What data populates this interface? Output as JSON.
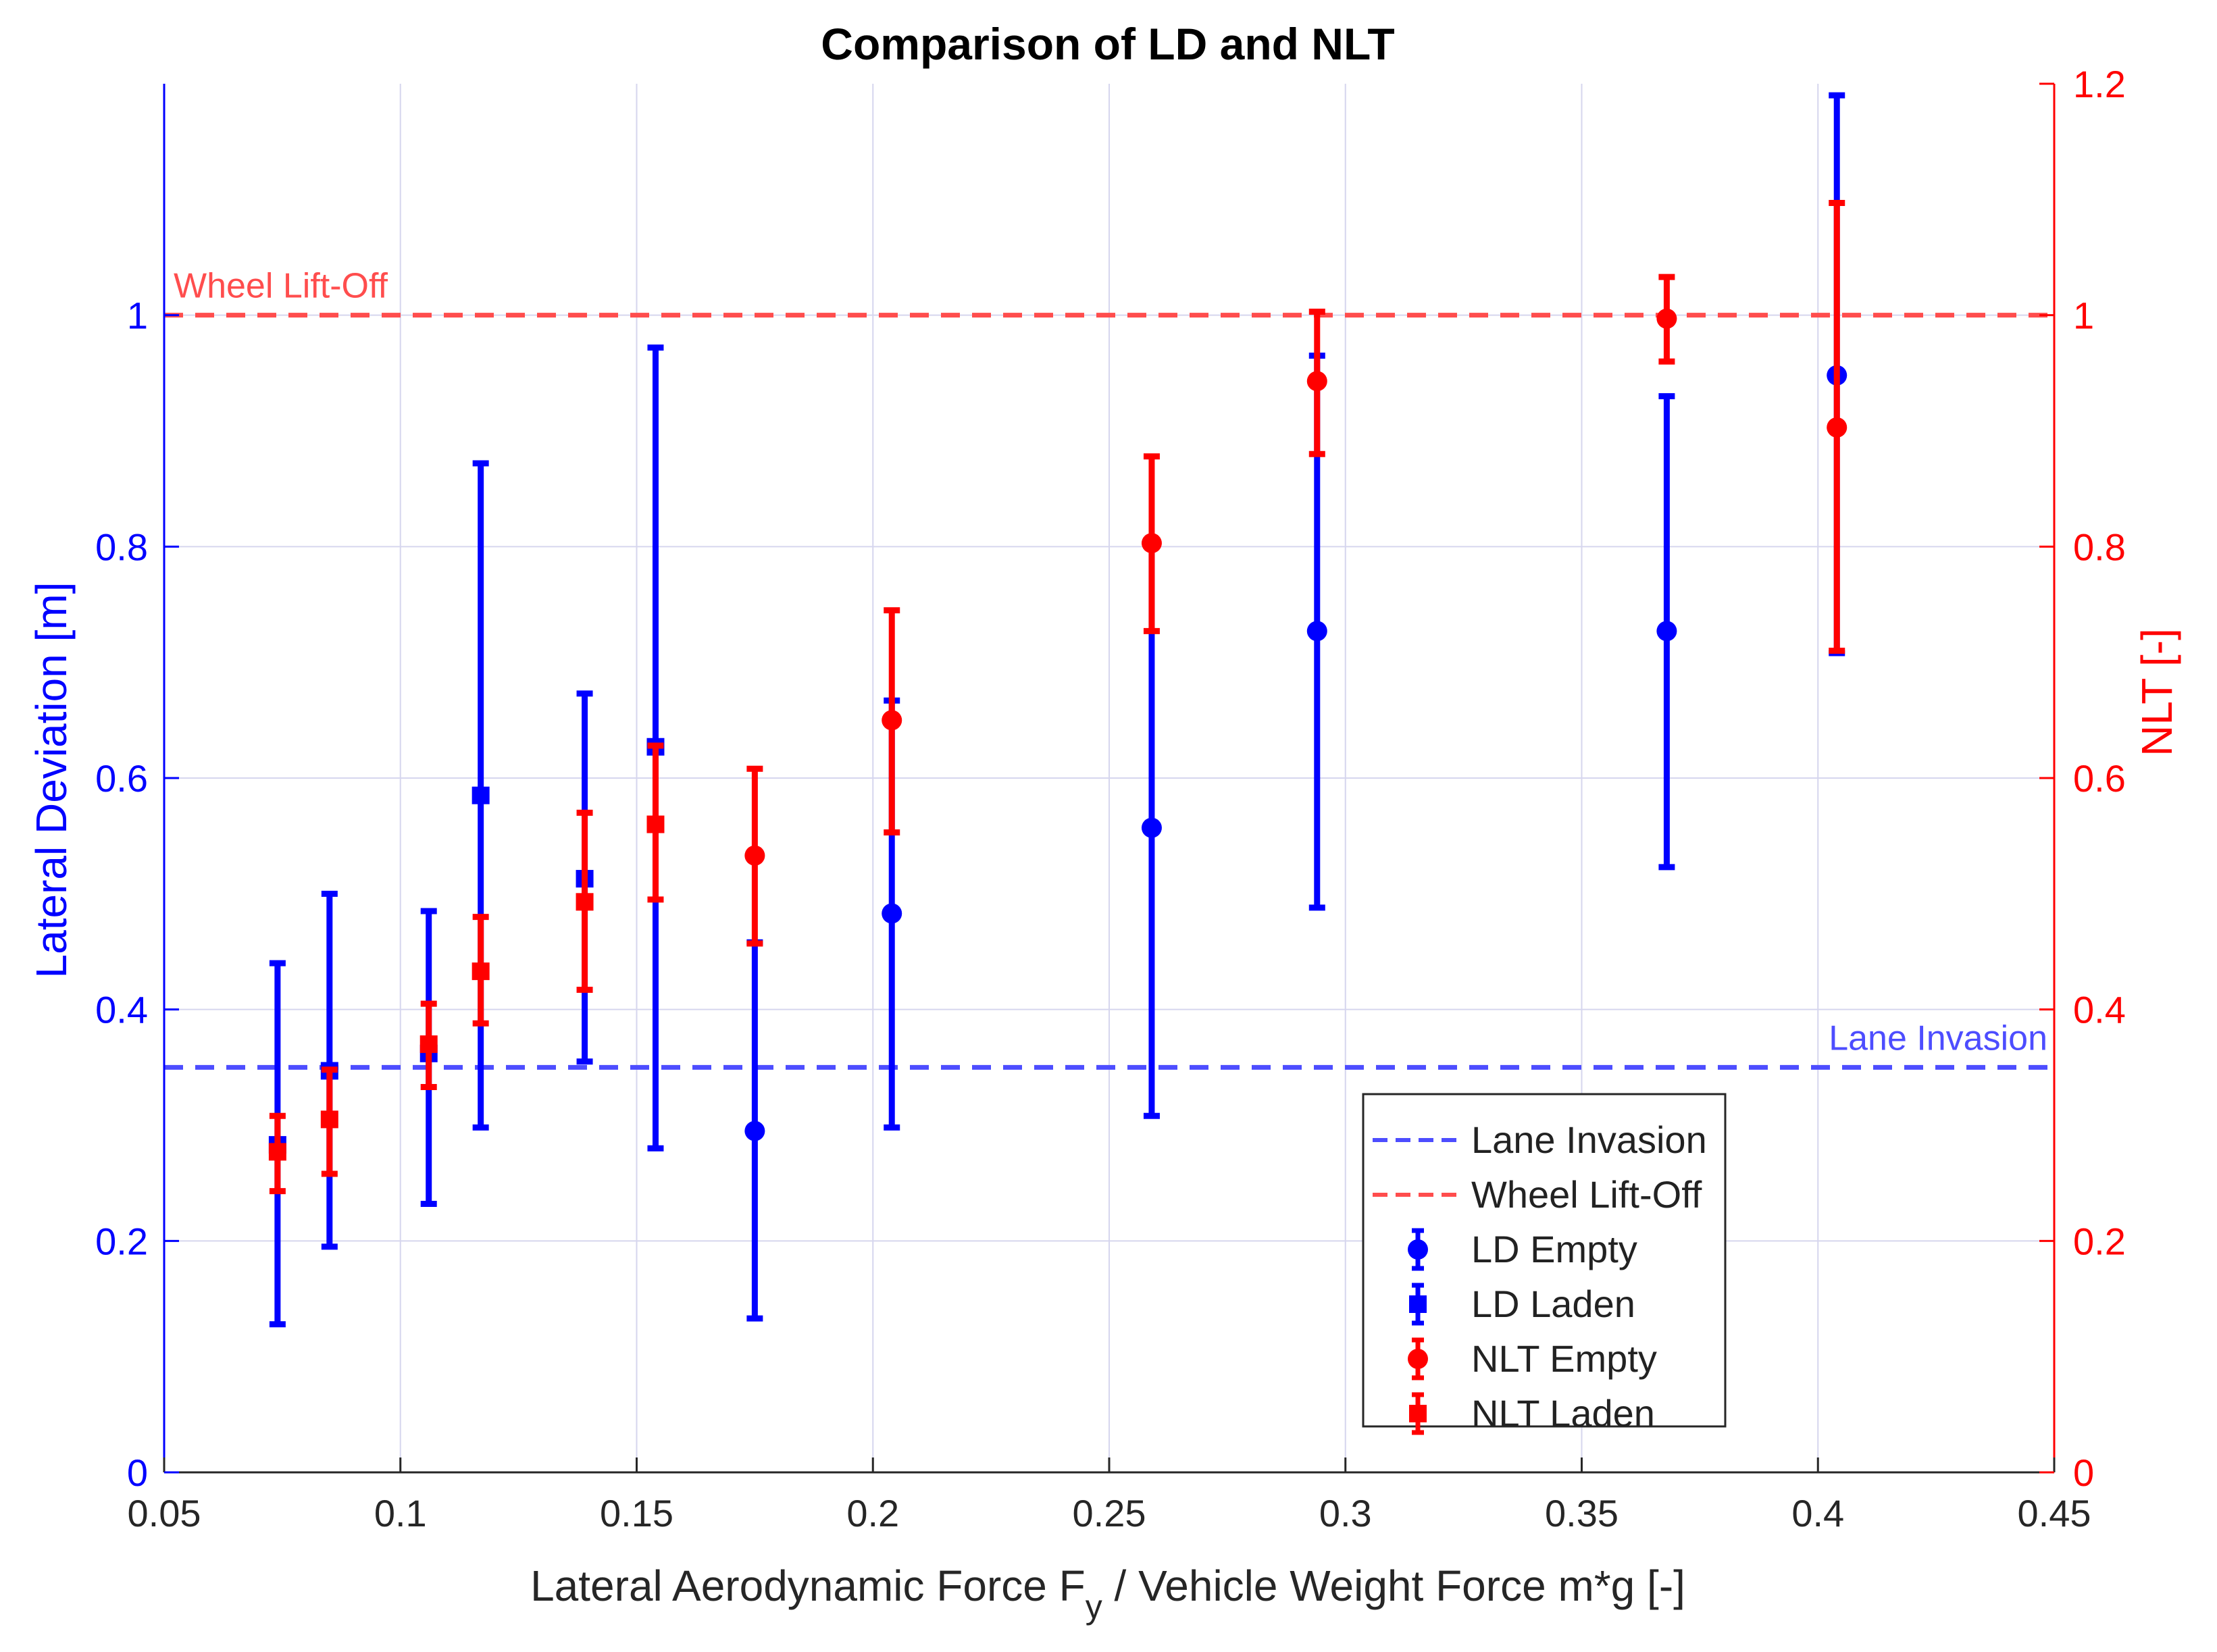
{
  "chart_data": {
    "type": "scatter",
    "title": "Comparison of LD and NLT",
    "xlabel_main": "Lateral Aerodynamic Force F",
    "xlabel_sub": "y",
    "xlabel_rest": " / Vehicle Weight Force m*g [-]",
    "ylabel_left": "Lateral Deviation [m]",
    "ylabel_right": "NLT [-]",
    "xlim": [
      0.05,
      0.45
    ],
    "ylim_left": [
      0,
      1.2
    ],
    "ylim_right": [
      0,
      1.2
    ],
    "x_ticks": [
      "0.05",
      "0.1",
      "0.15",
      "0.2",
      "0.25",
      "0.3",
      "0.35",
      "0.4",
      "0.45"
    ],
    "y_left_ticks": [
      "0",
      "0.2",
      "0.4",
      "0.6",
      "0.8",
      "1"
    ],
    "y_right_ticks": [
      "0",
      "0.2",
      "0.4",
      "0.6",
      "0.8",
      "1",
      "1.2"
    ],
    "grid": true,
    "colors": {
      "left": "#0000ff",
      "right": "#ff0000",
      "lane": "#4d4dff",
      "lift": "#ff4d4d"
    },
    "reference_lines": [
      {
        "name": "Lane Invasion",
        "y": 0.35,
        "axis": "left",
        "style": "dashed",
        "color": "#4d4dff",
        "label": "Lane Invasion",
        "label_pos": "right"
      },
      {
        "name": "Wheel Lift-Off",
        "y": 1.0,
        "axis": "right",
        "style": "dashed",
        "color": "#ff4d4d",
        "label": "Wheel Lift-Off",
        "label_pos": "left"
      }
    ],
    "series": [
      {
        "name": "LD Empty",
        "axis": "left",
        "marker": "circle",
        "color": "#0000ff",
        "x": [
          0.175,
          0.204,
          0.259,
          0.294,
          0.368,
          0.404
        ],
        "y": [
          0.295,
          0.483,
          0.557,
          0.727,
          0.727,
          0.948
        ],
        "lower": [
          0.133,
          0.298,
          0.308,
          0.488,
          0.523,
          0.708
        ],
        "upper": [
          0.458,
          0.667,
          0.805,
          0.965,
          0.93,
          1.19
        ]
      },
      {
        "name": "LD Laden",
        "axis": "left",
        "marker": "square",
        "color": "#0000ff",
        "x": [
          0.074,
          0.085,
          0.106,
          0.117,
          0.139,
          0.154
        ],
        "y": [
          0.283,
          0.347,
          0.362,
          0.585,
          0.513,
          0.627
        ],
        "lower": [
          0.128,
          0.195,
          0.232,
          0.298,
          0.355,
          0.28
        ],
        "upper": [
          0.44,
          0.5,
          0.485,
          0.872,
          0.673,
          0.972
        ]
      },
      {
        "name": "NLT Empty",
        "axis": "right",
        "marker": "circle",
        "color": "#ff0000",
        "x": [
          0.175,
          0.204,
          0.259,
          0.294,
          0.368,
          0.404
        ],
        "y": [
          0.533,
          0.65,
          0.803,
          0.943,
          0.997,
          0.903
        ],
        "lower": [
          0.457,
          0.553,
          0.727,
          0.88,
          0.96,
          0.71
        ],
        "upper": [
          0.608,
          0.745,
          0.878,
          1.003,
          1.033,
          1.097
        ]
      },
      {
        "name": "NLT Laden",
        "axis": "right",
        "marker": "square",
        "color": "#ff0000",
        "x": [
          0.074,
          0.085,
          0.106,
          0.117,
          0.139,
          0.154
        ],
        "y": [
          0.277,
          0.305,
          0.37,
          0.433,
          0.493,
          0.56
        ],
        "lower": [
          0.243,
          0.258,
          0.333,
          0.388,
          0.417,
          0.495
        ],
        "upper": [
          0.308,
          0.348,
          0.405,
          0.48,
          0.57,
          0.628
        ]
      }
    ],
    "legend": {
      "position": "lower-right",
      "entries": [
        "Lane Invasion",
        "Wheel Lift-Off",
        "LD Empty",
        "LD Laden",
        "NLT Empty",
        "NLT Laden"
      ]
    }
  }
}
